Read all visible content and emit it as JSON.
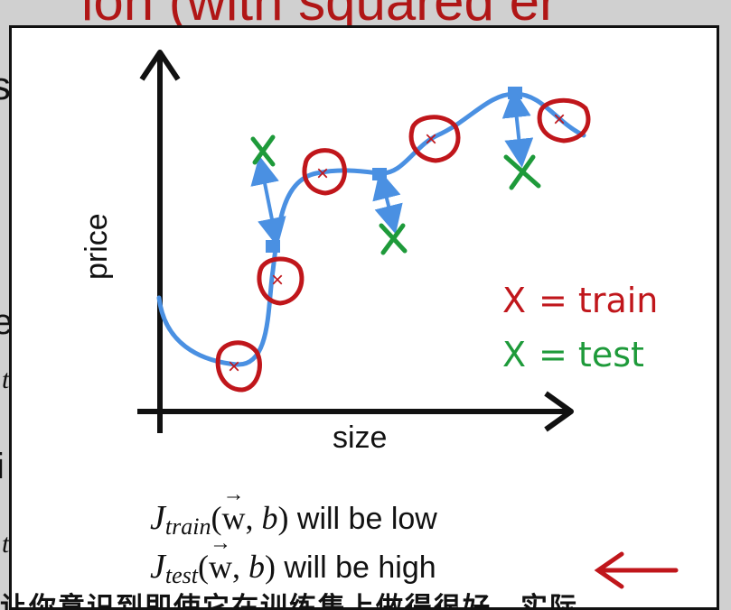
{
  "slide_top_text": "ion (with squared er",
  "left_edge_fragments": [
    "s",
    "e",
    "t",
    "i",
    "t"
  ],
  "diagram": {
    "y_label": "price",
    "x_label": "size",
    "legend": {
      "train_marker": "X",
      "train_label": "= train",
      "test_marker": "X",
      "test_label": "= test"
    },
    "train_marker_glyph": "×",
    "test_marker_glyph": "×"
  },
  "costs": [
    {
      "J": "J",
      "sub": "train",
      "vec": "w",
      "b": "b",
      "text": " will be low"
    },
    {
      "J": "J",
      "sub": "test",
      "vec": "w",
      "b": "b",
      "text": " will be high"
    }
  ],
  "subtitle": "让你意识到即使它在训练集上做得很好，实际",
  "colors": {
    "curve": "#4a90e2",
    "train": "#c0161b",
    "test": "#1e9a3a",
    "axis": "#111111",
    "arrow": "#c0161b"
  }
}
